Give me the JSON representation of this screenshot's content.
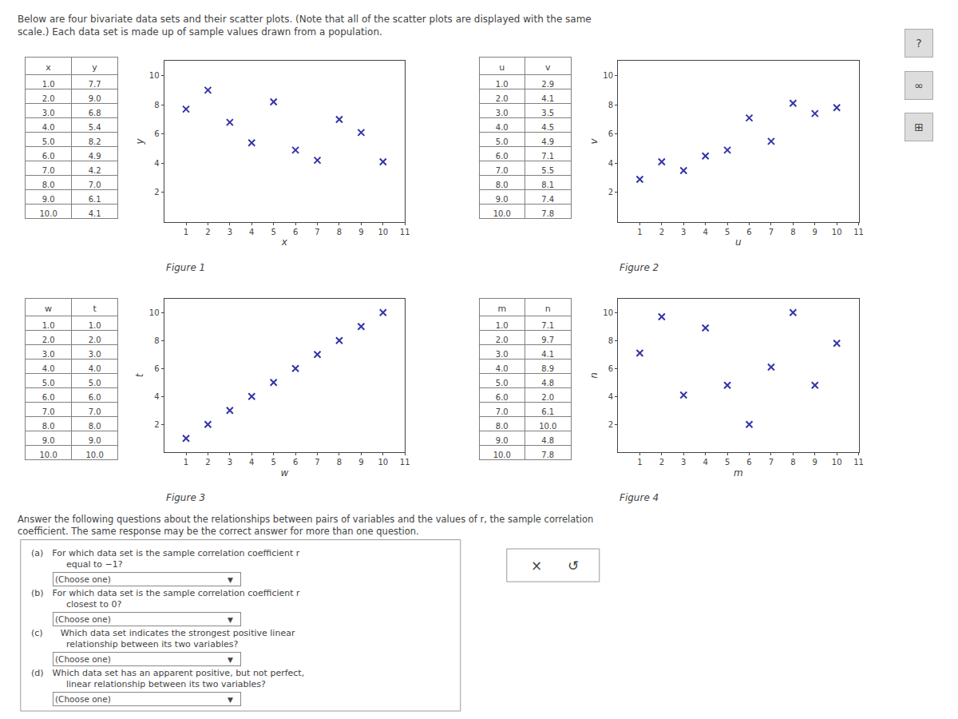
{
  "title": "Below are four bivariate data sets and their scatter plots. (Note that all of the scatter plots are displayed with the same\nscale.) Each data set is made up of sample values drawn from a population.",
  "annotations": [
    "Answer the following questions about the relationships between pairs of variables and the values of r, the sample correlation\ncoefficient. The same response may be the correct answer for more than one question.",
    "(a) For which data set is the sample correlation coefficient r\n    equal to −1?",
    "(Choose one)",
    "▼",
    "(b) For which data set is the sample correlation coefficient r\n    closest to 0?",
    "(Choose one)",
    "▼",
    "(c)  Which data set indicates the strongest positive linear\n    relationship between its two variables?",
    "(Choose one)",
    "▼",
    "(d) Which data set has an apparent positive, but not perfect,\n    linear relationship between its two variables?",
    "(Choose one)",
    "▼",
    "×",
    "↺",
    "?",
    "∞",
    "⊞"
  ],
  "chart_data": [
    {
      "type": "scatter",
      "title": "Figure 1",
      "xlabel": "x",
      "ylabel": "y",
      "x": [
        1.0,
        2.0,
        3.0,
        4.0,
        5.0,
        6.0,
        7.0,
        8.0,
        9.0,
        10.0
      ],
      "values": [
        7.7,
        9.0,
        6.8,
        5.4,
        8.2,
        4.9,
        4.2,
        7.0,
        6.1,
        4.1
      ],
      "xlim": [
        0,
        11
      ],
      "ylim": [
        0,
        11
      ],
      "xticks": [
        1,
        2,
        3,
        4,
        5,
        6,
        7,
        8,
        9,
        10,
        11
      ],
      "yticks": [
        2,
        4,
        6,
        8,
        10
      ],
      "color": "#3333aa",
      "marker": "x",
      "grid": false
    },
    {
      "type": "scatter",
      "title": "Figure 2",
      "xlabel": "u",
      "ylabel": "v",
      "x": [
        1.0,
        2.0,
        3.0,
        4.0,
        5.0,
        6.0,
        7.0,
        8.0,
        9.0,
        10.0
      ],
      "values": [
        2.9,
        4.1,
        3.5,
        4.5,
        4.9,
        7.1,
        5.5,
        8.1,
        7.4,
        7.8
      ],
      "xlim": [
        0,
        11
      ],
      "ylim": [
        0,
        11
      ],
      "xticks": [
        1,
        2,
        3,
        4,
        5,
        6,
        7,
        8,
        9,
        10,
        11
      ],
      "yticks": [
        2,
        4,
        6,
        8,
        10
      ],
      "color": "#3333aa",
      "marker": "x",
      "grid": false
    },
    {
      "type": "scatter",
      "title": "Figure 3",
      "xlabel": "w",
      "ylabel": "t",
      "x": [
        1.0,
        2.0,
        3.0,
        4.0,
        5.0,
        6.0,
        7.0,
        8.0,
        9.0,
        10.0
      ],
      "values": [
        1.0,
        2.0,
        3.0,
        4.0,
        5.0,
        6.0,
        7.0,
        8.0,
        9.0,
        10.0
      ],
      "xlim": [
        0,
        11
      ],
      "ylim": [
        0,
        11
      ],
      "xticks": [
        1,
        2,
        3,
        4,
        5,
        6,
        7,
        8,
        9,
        10,
        11
      ],
      "yticks": [
        2,
        4,
        6,
        8,
        10
      ],
      "color": "#3333aa",
      "marker": "x",
      "grid": false
    },
    {
      "type": "scatter",
      "title": "Figure 4",
      "xlabel": "m",
      "ylabel": "n",
      "x": [
        1.0,
        2.0,
        3.0,
        4.0,
        5.0,
        6.0,
        7.0,
        8.0,
        9.0,
        10.0
      ],
      "values": [
        7.1,
        9.7,
        4.1,
        8.9,
        4.8,
        2.0,
        6.1,
        10.0,
        4.8,
        7.8
      ],
      "xlim": [
        0,
        11
      ],
      "ylim": [
        0,
        11
      ],
      "xticks": [
        1,
        2,
        3,
        4,
        5,
        6,
        7,
        8,
        9,
        10,
        11
      ],
      "yticks": [
        2,
        4,
        6,
        8,
        10
      ],
      "color": "#3333aa",
      "marker": "x",
      "grid": false
    }
  ]
}
